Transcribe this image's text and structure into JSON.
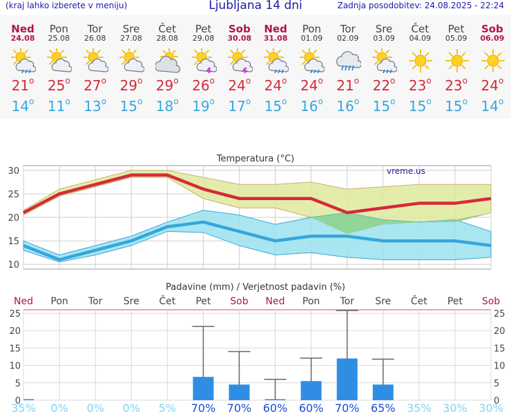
{
  "header": {
    "left": "(kraj lahko izberete v meniju)",
    "title": "Ljubljana 14 dni",
    "right": "Zadnja posodobitev: 24.08.2025 - 22:24"
  },
  "days": [
    {
      "name": "Ned",
      "date": "24.08",
      "weekend": true,
      "icon": "sun-cloud-rain-icon",
      "tmax": "21",
      "tmin": "14"
    },
    {
      "name": "Pon",
      "date": "25.08",
      "weekend": false,
      "icon": "sun-cloud-icon",
      "tmax": "25",
      "tmin": "11"
    },
    {
      "name": "Tor",
      "date": "26.08",
      "weekend": false,
      "icon": "sun-cloud-icon",
      "tmax": "27",
      "tmin": "13"
    },
    {
      "name": "Sre",
      "date": "27.08",
      "weekend": false,
      "icon": "sun-cloud-icon",
      "tmax": "29",
      "tmin": "15"
    },
    {
      "name": "Čet",
      "date": "28.08",
      "weekend": false,
      "icon": "cloud-sun-icon",
      "tmax": "29",
      "tmin": "18"
    },
    {
      "name": "Pet",
      "date": "29.08",
      "weekend": false,
      "icon": "sun-cloud-thunder-icon",
      "tmax": "26",
      "tmin": "19"
    },
    {
      "name": "Sob",
      "date": "30.08",
      "weekend": true,
      "icon": "sun-cloud-thunder-icon",
      "tmax": "24",
      "tmin": "17"
    },
    {
      "name": "Ned",
      "date": "31.08",
      "weekend": true,
      "icon": "sun-cloud-rain-icon",
      "tmax": "24",
      "tmin": "15"
    },
    {
      "name": "Pon",
      "date": "01.09",
      "weekend": false,
      "icon": "sun-cloud-rain-icon",
      "tmax": "24",
      "tmin": "16"
    },
    {
      "name": "Tor",
      "date": "02.09",
      "weekend": false,
      "icon": "cloud-rain-icon",
      "tmax": "21",
      "tmin": "16"
    },
    {
      "name": "Sre",
      "date": "03.09",
      "weekend": false,
      "icon": "sun-cloud-rain-icon",
      "tmax": "22",
      "tmin": "15"
    },
    {
      "name": "Čet",
      "date": "04.09",
      "weekend": false,
      "icon": "sun-icon",
      "tmax": "23",
      "tmin": "15"
    },
    {
      "name": "Pet",
      "date": "05.09",
      "weekend": false,
      "icon": "sun-icon",
      "tmax": "23",
      "tmin": "15"
    },
    {
      "name": "Sob",
      "date": "06.09",
      "weekend": true,
      "icon": "sun-icon",
      "tmax": "24",
      "tmin": "14"
    }
  ],
  "degree_symbol": "o",
  "colors": {
    "tmax": "#d52a3a",
    "tmin": "#36a6dc",
    "weekend": "#b0154a",
    "max_band": "#dfe99c",
    "min_band": "#9be2ef",
    "overlap": "#8fd38f",
    "bar": "#2f8de4",
    "prob_high": "#1a4bd0",
    "prob_low": "#7fd4f3"
  },
  "chart_data": [
    {
      "type": "line",
      "title": "Temperatura (°C)",
      "watermark": "vreme.us",
      "categories": [
        "24.08",
        "25.08",
        "26.08",
        "27.08",
        "28.08",
        "29.08",
        "30.08",
        "31.08",
        "01.09",
        "02.09",
        "03.09",
        "04.09",
        "05.09",
        "06.09"
      ],
      "ylim": [
        9,
        31
      ],
      "yticks": [
        "10",
        "15",
        "20",
        "25",
        "30"
      ],
      "grid": true,
      "series": [
        {
          "values": [
            21,
            25,
            27,
            29,
            29,
            26,
            24,
            24,
            24,
            21,
            22,
            23,
            23,
            24
          ]
        },
        {
          "values": [
            14,
            11,
            13,
            15,
            18,
            19,
            17,
            15,
            16,
            16,
            15,
            15,
            15,
            14
          ]
        }
      ],
      "max_band_upper": [
        21.5,
        26,
        28,
        30,
        30,
        28.5,
        27,
        27,
        27.5,
        26,
        26.5,
        27,
        27,
        27
      ],
      "max_band_lower": [
        20.5,
        24.5,
        26.5,
        28.5,
        28.5,
        24,
        22,
        22,
        20,
        16.5,
        18.5,
        19,
        19,
        21
      ],
      "min_band_upper": [
        15,
        12,
        14,
        16,
        19,
        21.5,
        20.5,
        18.5,
        20,
        21,
        19.5,
        19,
        19.5,
        17
      ],
      "min_band_lower": [
        13,
        10.5,
        12,
        14,
        17,
        16.8,
        14,
        12,
        12.5,
        11.5,
        11,
        11,
        11,
        11.5
      ]
    },
    {
      "type": "bar",
      "title": "Padavine (mm) / Verjetnost padavin (%)",
      "categories": [
        "Ned",
        "Pon",
        "Tor",
        "Sre",
        "Čet",
        "Pet",
        "Sob",
        "Ned",
        "Pon",
        "Tor",
        "Sre",
        "Čet",
        "Pet",
        "Sob"
      ],
      "weekend": [
        true,
        false,
        false,
        false,
        false,
        false,
        true,
        true,
        false,
        false,
        false,
        false,
        false,
        true
      ],
      "values": [
        0.3,
        0,
        0,
        0,
        0,
        6.7,
        4.5,
        0.3,
        5.5,
        12,
        4.5,
        0,
        0,
        0
      ],
      "error_high": [
        0,
        0,
        0,
        0,
        0,
        21.2,
        14,
        6,
        12.1,
        25.8,
        11.8,
        0,
        0,
        0
      ],
      "probability": [
        "35%",
        "0%",
        "0%",
        "0%",
        "5%",
        "70%",
        "70%",
        "60%",
        "60%",
        "70%",
        "65%",
        "35%",
        "30%",
        "30%"
      ],
      "prob_high": [
        false,
        false,
        false,
        false,
        false,
        true,
        true,
        true,
        true,
        true,
        true,
        false,
        false,
        false
      ],
      "ylim": [
        0,
        26
      ],
      "yticks": [
        "0",
        "5",
        "10",
        "15",
        "20",
        "25"
      ]
    }
  ]
}
